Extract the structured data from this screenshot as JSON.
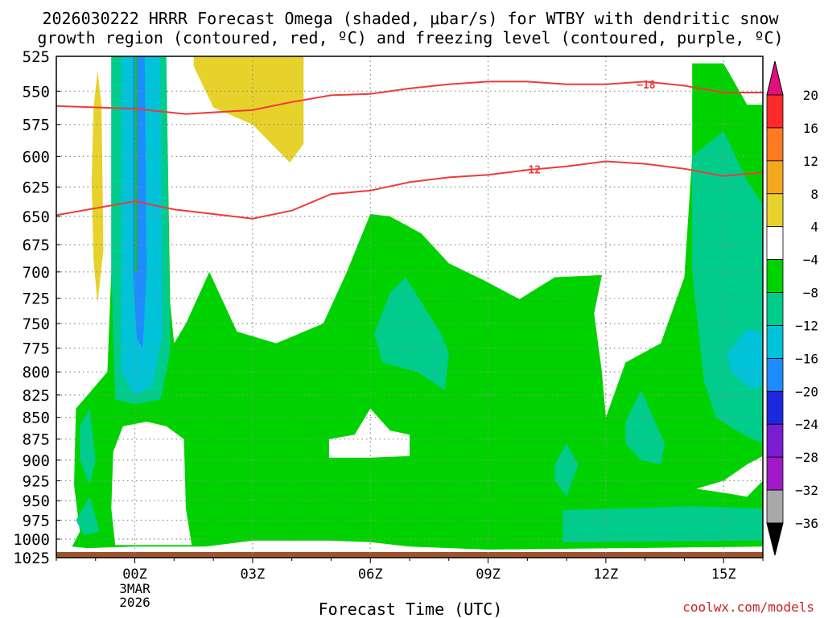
{
  "title_lines": [
    "2026030222 HRRR Forecast Omega (shaded, μbar/s) for WTBY with dendritic snow",
    "growth region (contoured, red, ºC) and freezing level (contoured, purple, ºC)"
  ],
  "xlabel": "Forecast Time (UTC)",
  "watermark": "coolwx.com/models",
  "date_sub_labels": [
    "3MAR",
    "2026"
  ],
  "colors": {
    "background": "#ffffff",
    "frame": "#000000",
    "grid": "#8c8c8c",
    "omega_neg4_neg8": "#00d200",
    "omega_neg8_neg12": "#00cc8c",
    "omega_neg12_neg16": "#00c2d8",
    "omega_neg16_neg20": "#1e8cff",
    "omega_4_8": "#e6d22a",
    "temp_contour": "#ee3a3a",
    "ground": "#a0522d",
    "watermark": "#cc2222"
  },
  "chart_data": {
    "type": "heatmap",
    "description_units": "omega in microbar/s vs pressure (hPa) and forecast time (UTC)",
    "x": {
      "ticks": [
        "00Z",
        "03Z",
        "06Z",
        "09Z",
        "12Z",
        "15Z"
      ],
      "tick_hours": [
        0,
        3,
        6,
        9,
        12,
        15
      ],
      "range_hours": [
        -2,
        16
      ]
    },
    "y": {
      "ticks": [
        525,
        550,
        575,
        600,
        625,
        650,
        675,
        700,
        725,
        750,
        775,
        800,
        825,
        850,
        875,
        900,
        925,
        950,
        975,
        1000,
        1025
      ],
      "range": [
        525,
        1025
      ],
      "inverted": true,
      "log": true
    },
    "grid": true,
    "colorbar": {
      "labels": [
        "20",
        "16",
        "12",
        "8",
        "4",
        "−4",
        "−8",
        "−12",
        "−16",
        "−20",
        "−24",
        "−28",
        "−32",
        "−36"
      ],
      "colors": [
        "#ff2a2a",
        "#ff7a22",
        "#f5a81e",
        "#e6d22a",
        "#ffffff",
        "#00d200",
        "#00cc8c",
        "#00c2d8",
        "#1e8cff",
        "#1c28e0",
        "#7a1cd2",
        "#a018c8",
        "#a8a8a8"
      ],
      "top_arrow_color": "#e0107c",
      "bottom_arrow_color": "#000000"
    },
    "contours": [
      {
        "label": "−18",
        "color": "#ee3a3a",
        "points": [
          [
            -2,
            561
          ],
          [
            0,
            563
          ],
          [
            1.3,
            567
          ],
          [
            3,
            564
          ],
          [
            4,
            558
          ],
          [
            5,
            553
          ],
          [
            6,
            552
          ],
          [
            7,
            548
          ],
          [
            8,
            545
          ],
          [
            9,
            543
          ],
          [
            10,
            543
          ],
          [
            11,
            545
          ],
          [
            12,
            545
          ],
          [
            13,
            543
          ],
          [
            14,
            546
          ],
          [
            15,
            551
          ],
          [
            16,
            551
          ]
        ]
      },
      {
        "label": "−12",
        "color": "#ee3a3a",
        "points": [
          [
            -2,
            649
          ],
          [
            0,
            637
          ],
          [
            1,
            644
          ],
          [
            2,
            648
          ],
          [
            3,
            652
          ],
          [
            4,
            645
          ],
          [
            5,
            631
          ],
          [
            6,
            628
          ],
          [
            7,
            621
          ],
          [
            8,
            617
          ],
          [
            9,
            615
          ],
          [
            10,
            611
          ],
          [
            11,
            608
          ],
          [
            12,
            604
          ],
          [
            13,
            606
          ],
          [
            14,
            610
          ],
          [
            15,
            616
          ],
          [
            16,
            613
          ]
        ]
      }
    ],
    "regions": [
      {
        "level": "4 to 8",
        "color": "#e6d22a",
        "polygon": [
          [
            -1.05,
            562
          ],
          [
            -0.95,
            535
          ],
          [
            -0.85,
            560
          ],
          [
            -0.8,
            680
          ],
          [
            -0.95,
            730
          ],
          [
            -1.05,
            690
          ],
          [
            -1.1,
            620
          ]
        ]
      },
      {
        "level": "4 to 8",
        "color": "#e6d22a",
        "polygon": [
          [
            1.5,
            525
          ],
          [
            4.3,
            525
          ],
          [
            4.3,
            590
          ],
          [
            3.95,
            605
          ],
          [
            3,
            575
          ],
          [
            2,
            562
          ],
          [
            1.5,
            532
          ]
        ]
      },
      {
        "level": "-4 to -8",
        "color": "#00d200",
        "polygon": [
          [
            -1.6,
            1010
          ],
          [
            -1.4,
            990
          ],
          [
            -1.55,
            930
          ],
          [
            -1.5,
            840
          ],
          [
            -0.7,
            800
          ],
          [
            -0.6,
            700
          ],
          [
            -0.6,
            525
          ],
          [
            0.8,
            525
          ],
          [
            0.9,
            730
          ],
          [
            1,
            770
          ],
          [
            1.3,
            750
          ],
          [
            1.9,
            700
          ],
          [
            2.6,
            758
          ],
          [
            3.6,
            770
          ],
          [
            4.8,
            750
          ],
          [
            5.4,
            700
          ],
          [
            6,
            648
          ],
          [
            6.5,
            650
          ],
          [
            7.3,
            665
          ],
          [
            8,
            692
          ],
          [
            8.9,
            708
          ],
          [
            9.8,
            726
          ],
          [
            10.7,
            705
          ],
          [
            11.9,
            703
          ],
          [
            11.7,
            740
          ],
          [
            11.9,
            800
          ],
          [
            12,
            850
          ],
          [
            12.5,
            790
          ],
          [
            13.4,
            770
          ],
          [
            14,
            705
          ],
          [
            14.2,
            600
          ],
          [
            14.2,
            530
          ],
          [
            15,
            530
          ],
          [
            15.6,
            560
          ],
          [
            16,
            560
          ],
          [
            16,
            1010
          ],
          [
            9,
            1014
          ],
          [
            7,
            1010
          ],
          [
            6,
            1004
          ],
          [
            5,
            1002
          ],
          [
            3,
            1002
          ],
          [
            1.8,
            1010
          ],
          [
            0,
            1010
          ],
          [
            -1.2,
            1012
          ]
        ]
      },
      {
        "level": "-8 to -12",
        "color": "#00cc8c",
        "polygon": [
          [
            -0.6,
            525
          ],
          [
            0.8,
            525
          ],
          [
            0.9,
            780
          ],
          [
            0.65,
            830
          ],
          [
            0,
            835
          ],
          [
            -0.5,
            830
          ],
          [
            -0.6,
            700
          ]
        ]
      },
      {
        "level": "-8 to -12",
        "color": "#00cc8c",
        "polygon": [
          [
            6.1,
            760
          ],
          [
            6.5,
            720
          ],
          [
            6.9,
            705
          ],
          [
            7.8,
            760
          ],
          [
            8,
            780
          ],
          [
            7.9,
            820
          ],
          [
            7.2,
            800
          ],
          [
            6.3,
            790
          ]
        ]
      },
      {
        "level": "-8 to -12",
        "color": "#00cc8c",
        "polygon": [
          [
            14.2,
            600
          ],
          [
            15,
            580
          ],
          [
            15.6,
            620
          ],
          [
            16,
            640
          ],
          [
            16,
            880
          ],
          [
            15.5,
            870
          ],
          [
            14.8,
            850
          ],
          [
            14.5,
            810
          ],
          [
            14.2,
            700
          ]
        ]
      },
      {
        "level": "-8 to -12",
        "color": "#00cc8c",
        "polygon": [
          [
            12.5,
            855
          ],
          [
            12.9,
            820
          ],
          [
            13.5,
            880
          ],
          [
            13.4,
            905
          ],
          [
            12.9,
            900
          ],
          [
            12.5,
            880
          ]
        ]
      },
      {
        "level": "-8 to -12",
        "color": "#00cc8c",
        "polygon": [
          [
            10.7,
            905
          ],
          [
            11,
            880
          ],
          [
            11.3,
            905
          ],
          [
            11,
            945
          ],
          [
            10.7,
            925
          ]
        ]
      },
      {
        "level": "-8 to -12",
        "color": "#00cc8c",
        "polygon": [
          [
            -1.4,
            860
          ],
          [
            -1.15,
            840
          ],
          [
            -1,
            900
          ],
          [
            -1.15,
            930
          ],
          [
            -1.4,
            900
          ]
        ]
      },
      {
        "level": "-8 to -12",
        "color": "#00cc8c",
        "polygon": [
          [
            -1.5,
            975
          ],
          [
            -1.15,
            945
          ],
          [
            -0.9,
            990
          ],
          [
            -1.3,
            995
          ]
        ]
      },
      {
        "level": "-8 to -12",
        "color": "#00cc8c",
        "polygon": [
          [
            10.9,
            962
          ],
          [
            14.2,
            957
          ],
          [
            16,
            960
          ],
          [
            16,
            1002
          ],
          [
            10.9,
            1004
          ]
        ]
      },
      {
        "level": "-12 to -16",
        "color": "#00c2d8",
        "polygon": [
          [
            -0.35,
            525
          ],
          [
            0.65,
            525
          ],
          [
            0.7,
            760
          ],
          [
            0.45,
            815
          ],
          [
            0,
            825
          ],
          [
            -0.35,
            800
          ]
        ]
      },
      {
        "level": "-12 to -16",
        "color": "#00c2d8",
        "polygon": [
          [
            15.1,
            780
          ],
          [
            15.6,
            755
          ],
          [
            16,
            760
          ],
          [
            16,
            815
          ],
          [
            15.7,
            818
          ],
          [
            15.2,
            800
          ]
        ]
      },
      {
        "level": "-16 to -20",
        "color": "#1e8cff",
        "polygon": [
          [
            -0.05,
            525
          ],
          [
            0.25,
            525
          ],
          [
            0.3,
            700
          ],
          [
            0.2,
            775
          ],
          [
            0.05,
            765
          ],
          [
            -0.05,
            700
          ]
        ]
      },
      {
        "level": "-4 to -8",
        "color": "#00d200",
        "polygon": [
          [
            0,
            525
          ],
          [
            0.05,
            525
          ],
          [
            0.05,
            700
          ],
          [
            0,
            700
          ]
        ]
      }
    ],
    "blank_regions": [
      {
        "level": "-4 to 4",
        "color": "#ffffff",
        "polygon": [
          [
            -0.5,
            1008
          ],
          [
            -0.6,
            960
          ],
          [
            -0.55,
            890
          ],
          [
            -0.3,
            860
          ],
          [
            0.3,
            855
          ],
          [
            0.8,
            860
          ],
          [
            1.25,
            875
          ],
          [
            1.3,
            960
          ],
          [
            1.45,
            1008
          ]
        ]
      },
      {
        "level": "-4 to 4",
        "color": "#ffffff",
        "polygon": [
          [
            4.95,
            875
          ],
          [
            5.6,
            870
          ],
          [
            6,
            840
          ],
          [
            6.5,
            865
          ],
          [
            7,
            870
          ],
          [
            7,
            895
          ],
          [
            6,
            897
          ],
          [
            4.95,
            897
          ]
        ]
      },
      {
        "level": "-4 to 4",
        "color": "#ffffff",
        "polygon": [
          [
            14.3,
            935
          ],
          [
            15,
            925
          ],
          [
            15.6,
            905
          ],
          [
            16,
            895
          ],
          [
            16,
            925
          ],
          [
            15.6,
            945
          ],
          [
            15,
            940
          ]
        ]
      }
    ]
  }
}
